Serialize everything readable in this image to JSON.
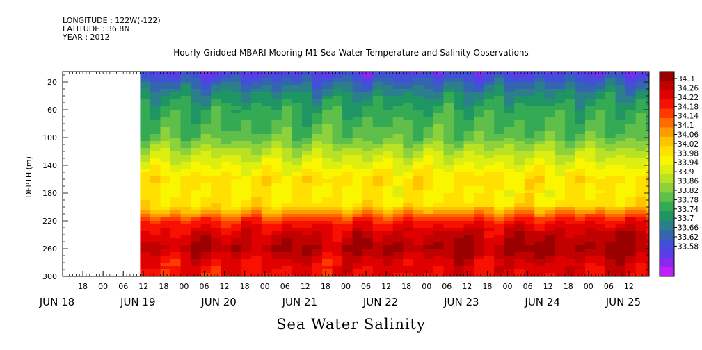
{
  "header": {
    "longitude": "LONGITUDE : 122W(-122)",
    "latitude": "LATITUDE : 36.8N",
    "year": "YEAR : 2012"
  },
  "chart_data": {
    "type": "heatmap",
    "title": "Hourly Gridded MBARI Mooring M1 Sea Water Temperature and Salinity Observations",
    "xlabel": "Sea Water Salinity",
    "ylabel": "DEPTH (m)",
    "x_range_hours": [
      "2012-06-18 12:00",
      "2012-06-25 18:00"
    ],
    "data_start": "2012-06-18 23:00",
    "xlim_hours": [
      -12,
      162
    ],
    "ylim": [
      300,
      5
    ],
    "y_ticks": [
      20,
      60,
      100,
      140,
      180,
      220,
      260,
      300
    ],
    "x_hour_ticks": [
      {
        "h": 6,
        "label": "18"
      },
      {
        "h": 12,
        "label": "00"
      },
      {
        "h": 18,
        "label": "06"
      },
      {
        "h": 24,
        "label": "12"
      },
      {
        "h": 30,
        "label": "18"
      },
      {
        "h": 36,
        "label": "00"
      },
      {
        "h": 42,
        "label": "06"
      },
      {
        "h": 48,
        "label": "12"
      },
      {
        "h": 54,
        "label": "18"
      },
      {
        "h": 60,
        "label": "00"
      },
      {
        "h": 66,
        "label": "06"
      },
      {
        "h": 72,
        "label": "12"
      },
      {
        "h": 78,
        "label": "18"
      },
      {
        "h": 84,
        "label": "00"
      },
      {
        "h": 90,
        "label": "06"
      },
      {
        "h": 96,
        "label": "12"
      },
      {
        "h": 102,
        "label": "18"
      },
      {
        "h": 108,
        "label": "00"
      },
      {
        "h": 114,
        "label": "06"
      },
      {
        "h": 120,
        "label": "12"
      },
      {
        "h": 126,
        "label": "18"
      },
      {
        "h": 132,
        "label": "00"
      },
      {
        "h": 138,
        "label": "06"
      },
      {
        "h": 144,
        "label": "12"
      },
      {
        "h": 150,
        "label": "18"
      },
      {
        "h": 156,
        "label": "00"
      },
      {
        "h": 162,
        "label": "06"
      },
      {
        "h": 168,
        "label": "12"
      }
    ],
    "x_day_labels": [
      {
        "h": 0,
        "label": "JUN 18"
      },
      {
        "h": 24,
        "label": "JUN 19"
      },
      {
        "h": 48,
        "label": "JUN 20"
      },
      {
        "h": 72,
        "label": "JUN 21"
      },
      {
        "h": 96,
        "label": "JUN 22"
      },
      {
        "h": 120,
        "label": "JUN 23"
      },
      {
        "h": 144,
        "label": "JUN 24"
      },
      {
        "h": 168,
        "label": "JUN 25"
      }
    ],
    "colorbar": {
      "levels": [
        "34.3",
        "34.26",
        "34.22",
        "34.18",
        "34.14",
        "34.1",
        "34.06",
        "34.02",
        "33.98",
        "33.94",
        "33.9",
        "33.86",
        "33.82",
        "33.78",
        "33.74",
        "33.7",
        "33.66",
        "33.62",
        "33.58"
      ],
      "colors": [
        "#9b0000",
        "#c10000",
        "#e10000",
        "#f81000",
        "#ff3b00",
        "#ff6c00",
        "#ff9a00",
        "#ffc400",
        "#ffe000",
        "#f9f600",
        "#dcef10",
        "#b9e224",
        "#8dd23a",
        "#5fbf4a",
        "#35aa55",
        "#1f9563",
        "#2a7f8a",
        "#3466b0",
        "#4150d6",
        "#5a3de8",
        "#8a28f0",
        "#c21ef7"
      ],
      "range": [
        33.58,
        34.3
      ]
    },
    "salinity_profile": [
      {
        "depth": 5,
        "value": 33.66
      },
      {
        "depth": 20,
        "value": 33.72
      },
      {
        "depth": 40,
        "value": 33.78
      },
      {
        "depth": 60,
        "value": 33.82
      },
      {
        "depth": 80,
        "value": 33.84
      },
      {
        "depth": 100,
        "value": 33.86
      },
      {
        "depth": 120,
        "value": 33.92
      },
      {
        "depth": 140,
        "value": 33.97
      },
      {
        "depth": 160,
        "value": 34.02
      },
      {
        "depth": 180,
        "value": 34.0
      },
      {
        "depth": 200,
        "value": 34.02
      },
      {
        "depth": 210,
        "value": 34.08
      },
      {
        "depth": 220,
        "value": 34.16
      },
      {
        "depth": 240,
        "value": 34.22
      },
      {
        "depth": 260,
        "value": 34.25
      },
      {
        "depth": 280,
        "value": 34.2
      },
      {
        "depth": 300,
        "value": 34.18
      }
    ]
  }
}
